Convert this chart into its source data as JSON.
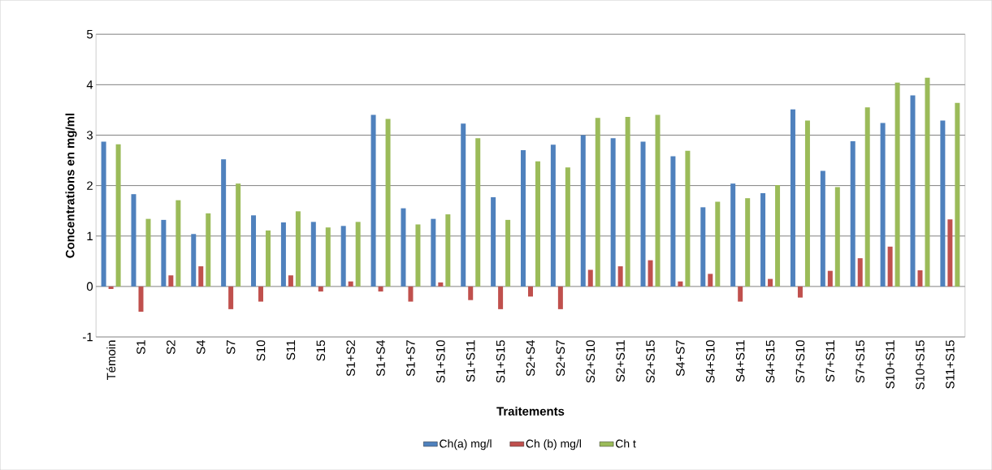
{
  "chart_data": {
    "type": "bar",
    "xlabel": "Traitements",
    "ylabel": "Concentrations en mg/ml",
    "categories": [
      "Témoin",
      "S1",
      "S2",
      "S4",
      "S7",
      "S10",
      "S11",
      "S15",
      "S1+S2",
      "S1+S4",
      "S1+S7",
      "S1+S10",
      "S1+S11",
      "S1+S15",
      "S2+S4",
      "S2+S7",
      "S2+S10",
      "S2+S11",
      "S2+S15",
      "S4+S7",
      "S4+S10",
      "S4+S11",
      "S4+S15",
      "S7+S10",
      "S7+S11",
      "S7+S15",
      "S10+S11",
      "S10+S15",
      "S11+S15"
    ],
    "series": [
      {
        "name": "Ch(a) mg/l",
        "color": "#4f81bd",
        "values": [
          2.87,
          1.83,
          1.32,
          1.04,
          2.52,
          1.41,
          1.27,
          1.28,
          1.2,
          3.4,
          1.55,
          1.34,
          3.23,
          1.77,
          2.7,
          2.81,
          3.0,
          2.94,
          2.87,
          2.58,
          1.57,
          2.04,
          1.85,
          3.51,
          2.29,
          2.88,
          3.24,
          3.79,
          3.29
        ]
      },
      {
        "name": "Ch (b) mg/l",
        "color": "#c0504d",
        "values": [
          -0.05,
          -0.5,
          0.22,
          0.4,
          -0.45,
          -0.3,
          0.22,
          -0.1,
          0.1,
          -0.1,
          -0.3,
          0.08,
          -0.27,
          -0.45,
          -0.2,
          -0.45,
          0.33,
          0.4,
          0.52,
          0.1,
          0.25,
          -0.3,
          0.15,
          -0.22,
          0.31,
          0.56,
          0.79,
          0.32,
          1.33
        ]
      },
      {
        "name": "Ch t",
        "color": "#9bbb59",
        "values": [
          2.82,
          1.34,
          1.71,
          1.45,
          2.04,
          1.11,
          1.49,
          1.17,
          1.28,
          3.32,
          1.23,
          1.43,
          2.94,
          1.32,
          2.48,
          2.36,
          3.34,
          3.36,
          3.4,
          2.69,
          1.68,
          1.75,
          2.01,
          3.29,
          1.97,
          3.55,
          4.04,
          4.14,
          3.64
        ]
      }
    ],
    "ylim": [
      -1,
      5
    ],
    "yticks": [
      -1,
      0,
      1,
      2,
      3,
      4,
      5
    ],
    "grid": "y",
    "legend": "bottom"
  }
}
